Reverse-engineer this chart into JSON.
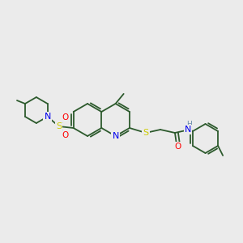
{
  "background_color": "#ebebeb",
  "bond_color": "#2d5a2d",
  "atom_colors": {
    "N": "#0000ee",
    "S": "#cccc00",
    "O": "#ff0000",
    "H": "#6688aa",
    "C": "#2d5a2d"
  },
  "figsize": [
    3.0,
    3.0
  ],
  "dpi": 100,
  "scale": 1.0
}
